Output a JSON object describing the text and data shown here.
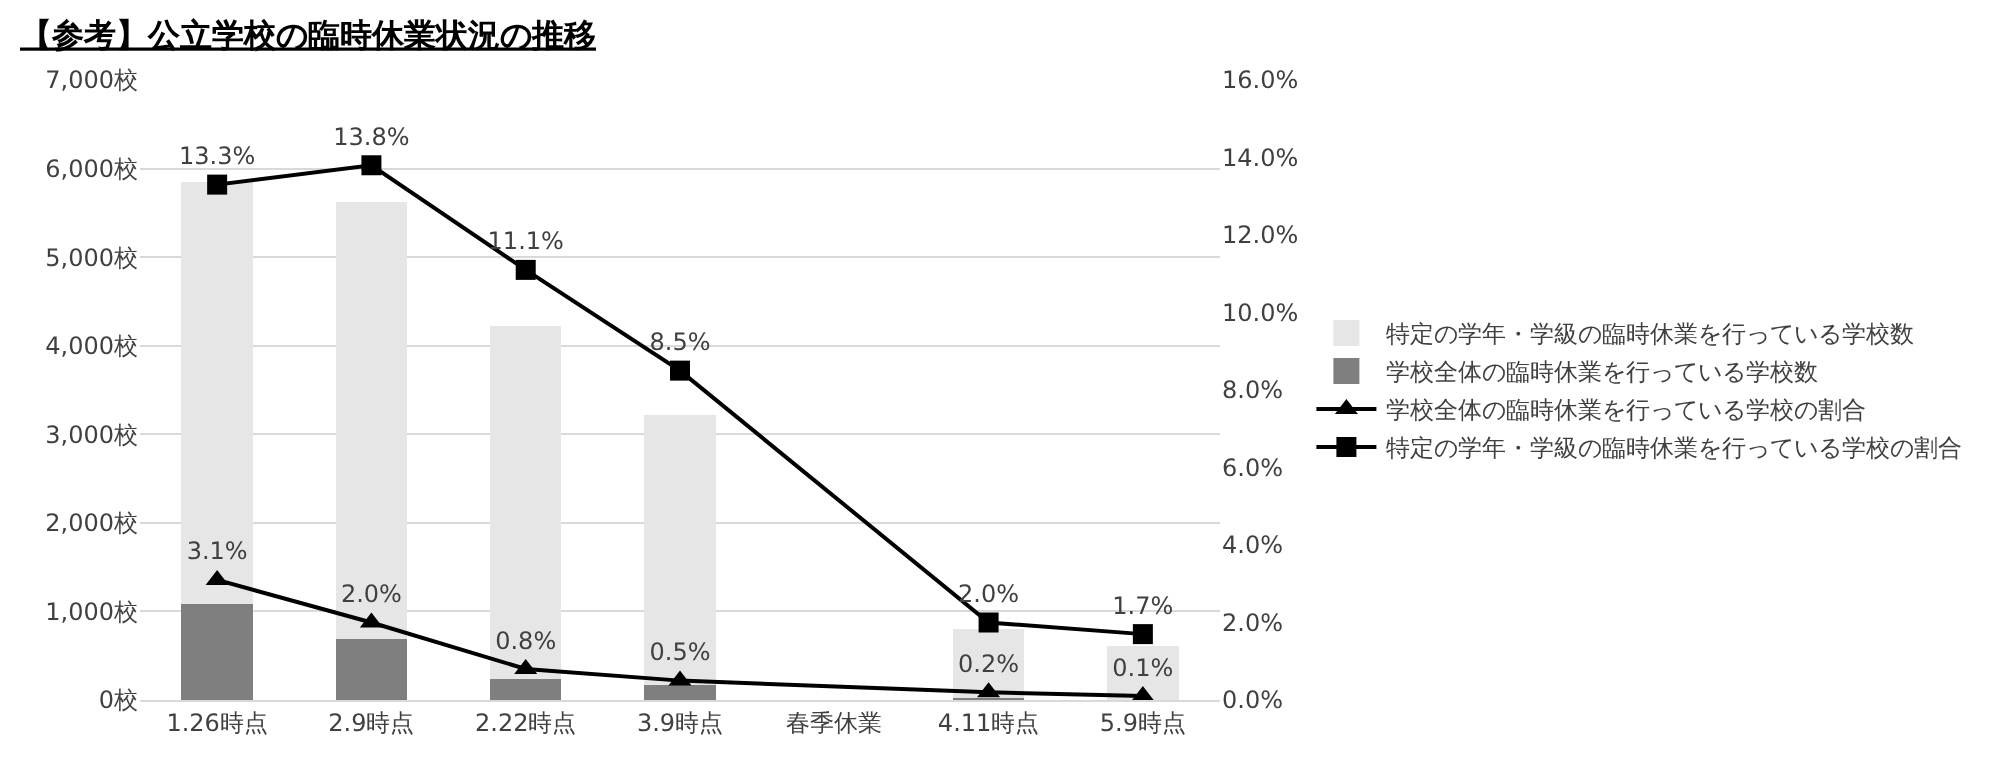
{
  "chart_data": {
    "type": "bar",
    "title": "【参考】公立学校の臨時休業状況の推移",
    "categories": [
      "1.26時点",
      "2.9時点",
      "2.22時点",
      "3.9時点",
      "春季休業",
      "4.11時点",
      "5.9時点"
    ],
    "stacked": true,
    "series": [
      {
        "name": "学校全体の臨時休業を行っている学校数",
        "color": "#7f7f7f",
        "values": [
          1100,
          700,
          250,
          180,
          null,
          30,
          10
        ]
      },
      {
        "name": "特定の学年・学級の臨時休業を行っている学校数",
        "color": "#e6e6e6",
        "values": [
          4740,
          4910,
          3960,
          3030,
          null,
          760,
          590
        ]
      },
      {
        "name": "学校全体の臨時休業を行っている学校の割合",
        "type": "line",
        "axis": "y2",
        "color": "#000000",
        "marker": "triangle",
        "values": [
          3.1,
          2.0,
          0.8,
          0.5,
          null,
          0.2,
          0.1
        ],
        "value_labels": [
          "3.1%",
          "2.0%",
          "0.8%",
          "0.5%",
          null,
          "0.2%",
          "0.1%"
        ]
      },
      {
        "name": "特定の学年・学級の臨時休業を行っている学校の割合",
        "type": "line",
        "axis": "y2",
        "color": "#000000",
        "marker": "square",
        "values": [
          13.3,
          13.8,
          11.1,
          8.5,
          null,
          2.0,
          1.7
        ],
        "value_labels": [
          "13.3%",
          "13.8%",
          "11.1%",
          "8.5%",
          null,
          "2.0%",
          "1.7%"
        ]
      }
    ],
    "ylim": [
      0,
      7000
    ],
    "yticks": [
      {
        "value": 0,
        "label": "0校"
      },
      {
        "value": 1000,
        "label": "1,000校"
      },
      {
        "value": 2000,
        "label": "2,000校"
      },
      {
        "value": 3000,
        "label": "3,000校"
      },
      {
        "value": 4000,
        "label": "4,000校"
      },
      {
        "value": 5000,
        "label": "5,000校"
      },
      {
        "value": 6000,
        "label": "6,000校"
      },
      {
        "value": 7000,
        "label": "7,000校"
      }
    ],
    "y2lim": [
      0,
      16
    ],
    "y2ticks": [
      {
        "value": 0,
        "label": "0.0%"
      },
      {
        "value": 2,
        "label": "2.0%"
      },
      {
        "value": 4,
        "label": "4.0%"
      },
      {
        "value": 6,
        "label": "6.0%"
      },
      {
        "value": 8,
        "label": "8.0%"
      },
      {
        "value": 10,
        "label": "10.0%"
      },
      {
        "value": 12,
        "label": "12.0%"
      },
      {
        "value": 14,
        "label": "14.0%"
      },
      {
        "value": 16,
        "label": "16.0%"
      }
    ],
    "grid": "y",
    "legend": "right"
  }
}
